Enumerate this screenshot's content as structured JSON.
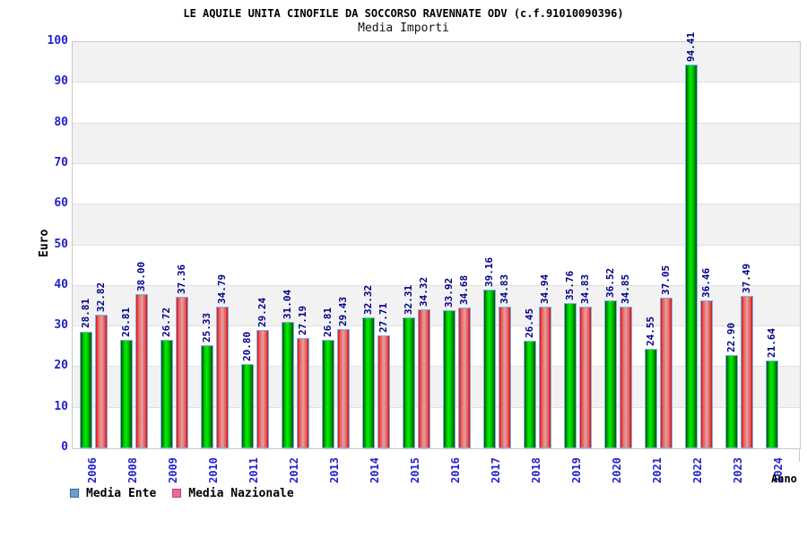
{
  "header": {
    "title": "LE AQUILE UNITA CINOFILE DA SOCCORSO RAVENNATE ODV (c.f.91010090396)",
    "subtitle": "Media Importi"
  },
  "chart_data": {
    "type": "bar",
    "title": "LE AQUILE UNITA CINOFILE DA SOCCORSO RAVENNATE ODV (c.f.91010090396)",
    "subtitle": "Media Importi",
    "xlabel": "Anno",
    "ylabel": "Euro",
    "ylim": [
      0,
      100
    ],
    "ytick_step": 10,
    "grid": "horizontal-bands-alternating",
    "legend_position": "bottom-left",
    "categories": [
      "2006",
      "2008",
      "2009",
      "2010",
      "2011",
      "2012",
      "2013",
      "2014",
      "2015",
      "2016",
      "2017",
      "2018",
      "2019",
      "2020",
      "2021",
      "2022",
      "2023",
      "2024"
    ],
    "series": [
      {
        "name": "Media Ente",
        "bar_color": "green-gradient",
        "legend_color": "#6a9ed6",
        "values": [
          28.81,
          26.81,
          26.72,
          25.33,
          20.8,
          31.04,
          26.81,
          32.32,
          32.31,
          33.92,
          39.16,
          26.45,
          35.76,
          36.52,
          24.55,
          94.41,
          22.9,
          21.64
        ]
      },
      {
        "name": "Media Nazionale",
        "bar_color": "red-gradient",
        "legend_color": "#ee6698",
        "values": [
          32.82,
          38.0,
          37.36,
          34.79,
          29.24,
          27.19,
          29.43,
          27.71,
          34.32,
          34.68,
          34.83,
          34.94,
          34.83,
          34.85,
          37.05,
          36.46,
          37.49,
          null
        ]
      }
    ],
    "value_label_color": "#00008b",
    "axis_tick_color": "#2222cc",
    "band_color": "#f2f2f2"
  }
}
